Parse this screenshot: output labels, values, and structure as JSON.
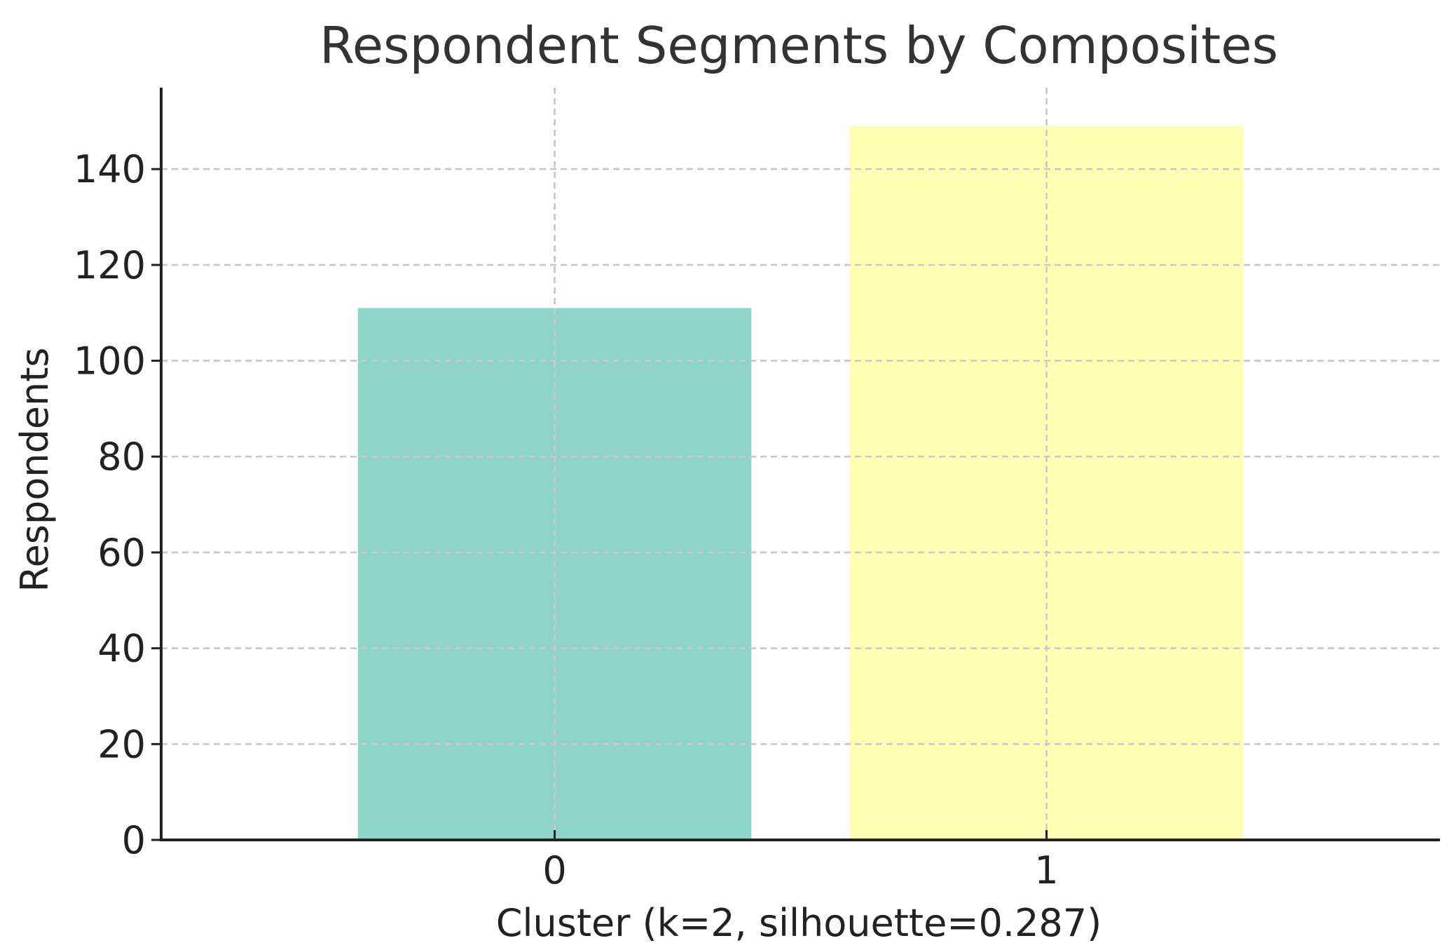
{
  "chart_data": {
    "type": "bar",
    "title": "Respondent Segments by Composites",
    "xlabel": "Cluster (k=2, silhouette=0.287)",
    "ylabel": "Respondents",
    "categories": [
      "0",
      "1"
    ],
    "values": [
      111,
      149
    ],
    "colors": [
      "#8dd3c7",
      "#ffffb3"
    ],
    "ylim": [
      0,
      157
    ],
    "yticks": [
      0,
      20,
      40,
      60,
      80,
      100,
      120,
      140
    ],
    "grid": true,
    "legend": "none"
  }
}
